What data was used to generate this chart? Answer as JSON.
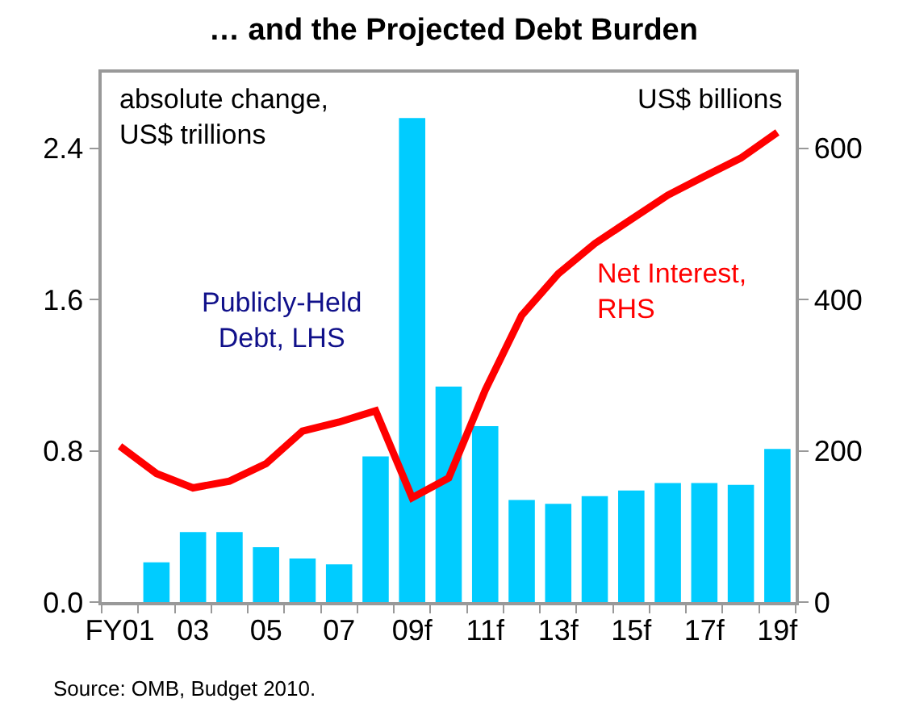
{
  "chart_data": {
    "type": "bar",
    "title": "… and the Projected Debt Burden",
    "categories": [
      "FY01",
      null,
      "03",
      null,
      "05",
      null,
      "07",
      null,
      "09f",
      null,
      "11f",
      null,
      "13f",
      null,
      "15f",
      null,
      "17f",
      null,
      "19f"
    ],
    "series": [
      {
        "name": "Publicly-Held Debt, LHS",
        "color": "#00ccff",
        "values": [
          null,
          0.21,
          0.37,
          0.37,
          0.29,
          0.23,
          0.2,
          0.77,
          2.56,
          1.14,
          0.93,
          0.54,
          0.52,
          0.56,
          0.59,
          0.63,
          0.63,
          0.62,
          0.81
        ]
      },
      {
        "name": "Net Interest, RHS",
        "type": "line",
        "axis": "y2",
        "color": "#ff0000",
        "values": [
          206,
          170,
          151,
          160,
          183,
          226,
          238,
          253,
          138,
          164,
          280,
          379,
          434,
          474,
          506,
          538,
          563,
          587,
          621
        ]
      }
    ],
    "ylim": [
      0,
      2.8
    ],
    "yticks": [
      {
        "value": 0,
        "label": "0.0"
      },
      0.8,
      1.6,
      2.4
    ],
    "y2lim": [
      0,
      700
    ],
    "y2ticks": [
      0,
      200,
      400,
      600
    ],
    "grid": false,
    "legend": false,
    "marker": "none",
    "line_style": "solid",
    "annotations": [
      "absolute change, US$ trillions",
      "US$ billions",
      "Source: OMB, Budget 2010."
    ]
  }
}
